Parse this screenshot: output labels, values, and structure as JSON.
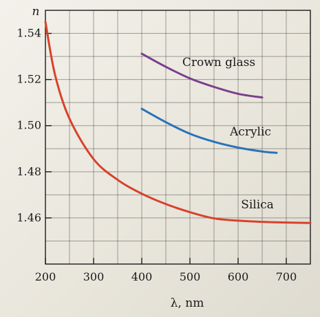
{
  "chart_data": {
    "type": "line",
    "xlabel": "λ, nm",
    "ylabel": "n",
    "xlim": [
      200,
      750
    ],
    "ylim": [
      1.44,
      1.55
    ],
    "x_ticks": [
      200,
      300,
      400,
      500,
      600,
      700
    ],
    "y_ticks": [
      1.46,
      1.48,
      1.5,
      1.52,
      1.54
    ],
    "grid": true,
    "series": [
      {
        "name": "Crown glass",
        "color": "#7a3e8c",
        "x": [
          400,
          450,
          500,
          550,
          600,
          650
        ],
        "y": [
          1.5312,
          1.5255,
          1.5205,
          1.5168,
          1.5138,
          1.5122
        ]
      },
      {
        "name": "Acrylic",
        "color": "#2a72b8",
        "x": [
          400,
          450,
          500,
          550,
          600,
          650,
          680
        ],
        "y": [
          1.5073,
          1.5015,
          1.4965,
          1.493,
          1.4905,
          1.4888,
          1.4882
        ]
      },
      {
        "name": "Silica",
        "color": "#d8412a",
        "x": [
          200,
          220,
          250,
          300,
          350,
          400,
          450,
          500,
          550,
          600,
          650,
          700,
          750
        ],
        "y": [
          1.545,
          1.522,
          1.503,
          1.4855,
          1.4765,
          1.4705,
          1.466,
          1.4625,
          1.4598,
          1.4588,
          1.4583,
          1.458,
          1.4578
        ]
      }
    ]
  }
}
